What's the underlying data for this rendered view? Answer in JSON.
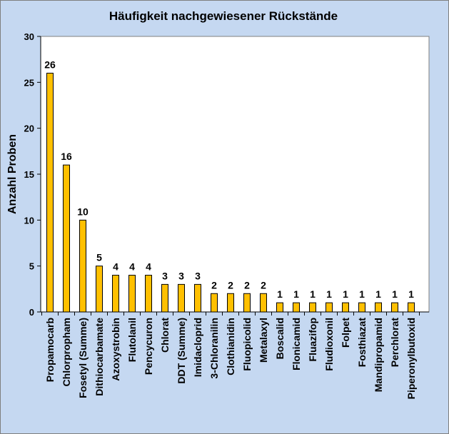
{
  "chart_data": {
    "type": "bar",
    "title": "Häufigkeit nachgewiesener Rückstände",
    "xlabel": "",
    "ylabel": "Anzahl Proben",
    "ylim": [
      0,
      30
    ],
    "yticks": [
      0,
      5,
      10,
      15,
      20,
      25,
      30
    ],
    "grid": false,
    "legend": "none",
    "bar_color": "#ffc000",
    "bar_edge_color": "#000000",
    "plot_background": "#ffffff",
    "chart_background": "#c5d8f1",
    "categories": [
      "Propamocarb",
      "Chlorpropham",
      "Fosetyl (Summe)",
      "Dithiocarbamate",
      "Azoxystrobin",
      "Flutolanil",
      "Pencycuron",
      "Chlorat",
      "DDT (Summe)",
      "Imidacloprid",
      "3-Chloranilin",
      "Clothianidin",
      "Fluopicolid",
      "Metalaxyl",
      "Boscalid",
      "Flonicamid",
      "Fluazifop",
      "Fludioxonil",
      "Folpet",
      "Fosthiazat",
      "Mandipropamid",
      "Perchlorat",
      "Piperonylbutoxid"
    ],
    "values": [
      26,
      16,
      10,
      5,
      4,
      4,
      4,
      3,
      3,
      3,
      2,
      2,
      2,
      2,
      1,
      1,
      1,
      1,
      1,
      1,
      1,
      1,
      1
    ]
  }
}
